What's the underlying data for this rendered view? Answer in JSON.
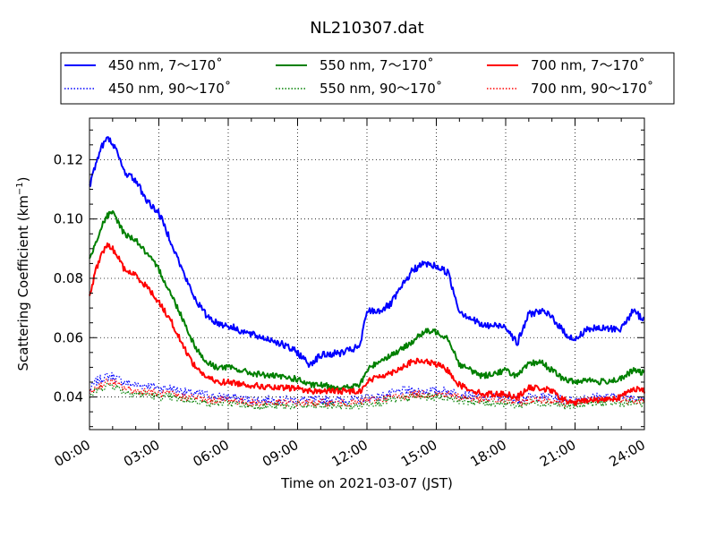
{
  "chart_data": {
    "type": "line",
    "title": "NL210307.dat",
    "xlabel": "Time on 2021-03-07 (JST)",
    "ylabel": "Scattering Coefficient (km",
    "ylabel_sup": "−1",
    "ylabel_close": ")",
    "x_ticks": [
      "00:00",
      "03:00",
      "06:00",
      "09:00",
      "12:00",
      "15:00",
      "18:00",
      "21:00",
      "24:00"
    ],
    "y_ticks": [
      "0.04",
      "0.06",
      "0.08",
      "0.10",
      "0.12"
    ],
    "xlim": [
      "00:00",
      "24:00"
    ],
    "ylim": [
      0.029,
      0.134
    ],
    "grid": true,
    "legend_position": "top, above plot (3 columns)",
    "x_hours": [
      0,
      0.25,
      0.5,
      0.75,
      1,
      1.25,
      1.5,
      2,
      2.5,
      3,
      3.5,
      4,
      4.5,
      5,
      5.5,
      6,
      7,
      8,
      9,
      9.5,
      10,
      11,
      11.7,
      12,
      12.5,
      13,
      13.5,
      14,
      14.5,
      15,
      15.5,
      16,
      17,
      18,
      18.5,
      19,
      19.5,
      20,
      20.5,
      21,
      21.5,
      22,
      23,
      23.5,
      24
    ],
    "series": [
      {
        "name": "450 nm, 7～170˚",
        "color": "#0000ff",
        "style": "solid",
        "noise": 0.0012,
        "values": [
          0.111,
          0.118,
          0.124,
          0.127,
          0.126,
          0.121,
          0.116,
          0.113,
          0.106,
          0.102,
          0.093,
          0.083,
          0.074,
          0.068,
          0.065,
          0.064,
          0.061,
          0.059,
          0.055,
          0.051,
          0.054,
          0.055,
          0.057,
          0.069,
          0.069,
          0.071,
          0.077,
          0.083,
          0.085,
          0.084,
          0.082,
          0.069,
          0.064,
          0.064,
          0.058,
          0.068,
          0.069,
          0.067,
          0.062,
          0.059,
          0.063,
          0.063,
          0.063,
          0.069,
          0.066
        ]
      },
      {
        "name": "450 nm, 90～170˚",
        "color": "#0000ff",
        "style": "dotted",
        "noise": 0.0015,
        "values": [
          0.042,
          0.045,
          0.046,
          0.047,
          0.047,
          0.046,
          0.045,
          0.044,
          0.044,
          0.043,
          0.043,
          0.042,
          0.041,
          0.041,
          0.04,
          0.04,
          0.039,
          0.039,
          0.039,
          0.039,
          0.039,
          0.039,
          0.039,
          0.04,
          0.04,
          0.041,
          0.042,
          0.042,
          0.042,
          0.042,
          0.042,
          0.041,
          0.04,
          0.04,
          0.039,
          0.04,
          0.04,
          0.04,
          0.039,
          0.039,
          0.04,
          0.04,
          0.04,
          0.04,
          0.04
        ]
      },
      {
        "name": "550 nm, 7～170˚",
        "color": "#008000",
        "style": "solid",
        "noise": 0.001,
        "values": [
          0.086,
          0.092,
          0.097,
          0.101,
          0.102,
          0.099,
          0.095,
          0.093,
          0.088,
          0.083,
          0.075,
          0.067,
          0.058,
          0.052,
          0.05,
          0.05,
          0.048,
          0.047,
          0.046,
          0.044,
          0.044,
          0.043,
          0.044,
          0.049,
          0.052,
          0.054,
          0.056,
          0.059,
          0.062,
          0.062,
          0.06,
          0.051,
          0.047,
          0.049,
          0.047,
          0.051,
          0.052,
          0.049,
          0.046,
          0.045,
          0.046,
          0.045,
          0.046,
          0.049,
          0.048
        ]
      },
      {
        "name": "550 nm, 90～170˚",
        "color": "#008000",
        "style": "dotted",
        "noise": 0.0013,
        "values": [
          0.04,
          0.042,
          0.043,
          0.044,
          0.044,
          0.043,
          0.042,
          0.041,
          0.041,
          0.04,
          0.04,
          0.039,
          0.039,
          0.038,
          0.038,
          0.038,
          0.037,
          0.037,
          0.037,
          0.037,
          0.037,
          0.037,
          0.037,
          0.038,
          0.038,
          0.039,
          0.039,
          0.04,
          0.04,
          0.04,
          0.04,
          0.039,
          0.038,
          0.038,
          0.037,
          0.038,
          0.038,
          0.038,
          0.037,
          0.037,
          0.038,
          0.038,
          0.038,
          0.038,
          0.038
        ]
      },
      {
        "name": "700 nm, 7～170˚",
        "color": "#ff0000",
        "style": "solid",
        "noise": 0.001,
        "values": [
          0.074,
          0.082,
          0.088,
          0.091,
          0.09,
          0.087,
          0.083,
          0.081,
          0.077,
          0.072,
          0.066,
          0.058,
          0.051,
          0.047,
          0.045,
          0.045,
          0.044,
          0.043,
          0.043,
          0.042,
          0.042,
          0.042,
          0.042,
          0.045,
          0.047,
          0.048,
          0.05,
          0.052,
          0.052,
          0.051,
          0.049,
          0.044,
          0.041,
          0.041,
          0.04,
          0.043,
          0.043,
          0.042,
          0.039,
          0.038,
          0.039,
          0.039,
          0.04,
          0.043,
          0.042
        ]
      },
      {
        "name": "700 nm, 90～170˚",
        "color": "#ff0000",
        "style": "dotted",
        "noise": 0.0013,
        "values": [
          0.041,
          0.043,
          0.044,
          0.045,
          0.045,
          0.044,
          0.043,
          0.042,
          0.042,
          0.041,
          0.041,
          0.04,
          0.04,
          0.039,
          0.039,
          0.039,
          0.038,
          0.038,
          0.038,
          0.038,
          0.038,
          0.038,
          0.038,
          0.039,
          0.039,
          0.04,
          0.04,
          0.041,
          0.041,
          0.041,
          0.041,
          0.04,
          0.039,
          0.039,
          0.038,
          0.039,
          0.039,
          0.039,
          0.038,
          0.038,
          0.039,
          0.039,
          0.039,
          0.039,
          0.039
        ]
      }
    ]
  }
}
